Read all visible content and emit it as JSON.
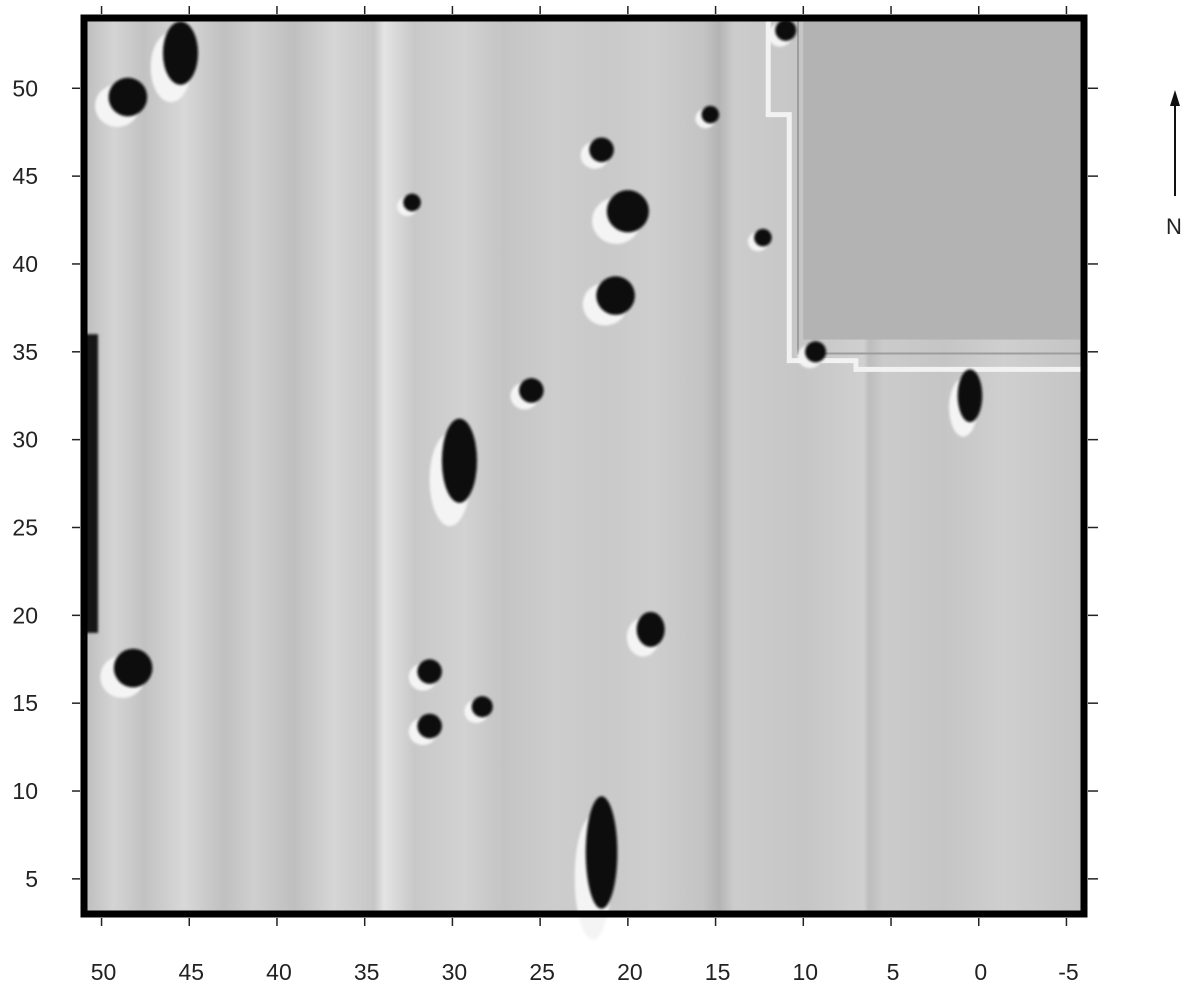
{
  "map": {
    "x_ticks": [
      "50",
      "45",
      "40",
      "35",
      "30",
      "25",
      "20",
      "15",
      "10",
      "5",
      "0",
      "-5"
    ],
    "y_ticks": [
      "50",
      "45",
      "40",
      "35",
      "30",
      "25",
      "20",
      "15",
      "10",
      "5"
    ],
    "x_range": [
      51,
      -6
    ],
    "y_range": [
      3,
      54
    ],
    "north_label": "N",
    "anomalies": [
      {
        "x": 48.5,
        "y": 49.5,
        "rx": 1.1,
        "ry": 1.1
      },
      {
        "x": 45.5,
        "y": 52.0,
        "rx": 1.0,
        "ry": 1.8
      },
      {
        "x": 20.0,
        "y": 43.0,
        "rx": 1.2,
        "ry": 1.2
      },
      {
        "x": 20.7,
        "y": 38.2,
        "rx": 1.1,
        "ry": 1.1
      },
      {
        "x": 21.5,
        "y": 46.5,
        "rx": 0.7,
        "ry": 0.7
      },
      {
        "x": 29.6,
        "y": 28.8,
        "rx": 1.0,
        "ry": 2.4
      },
      {
        "x": 25.5,
        "y": 32.8,
        "rx": 0.7,
        "ry": 0.7
      },
      {
        "x": 48.2,
        "y": 17.0,
        "rx": 1.1,
        "ry": 1.1
      },
      {
        "x": 18.7,
        "y": 19.2,
        "rx": 0.8,
        "ry": 1.0
      },
      {
        "x": 31.3,
        "y": 16.8,
        "rx": 0.7,
        "ry": 0.7
      },
      {
        "x": 28.3,
        "y": 14.8,
        "rx": 0.6,
        "ry": 0.6
      },
      {
        "x": 31.3,
        "y": 13.7,
        "rx": 0.7,
        "ry": 0.7
      },
      {
        "x": 21.5,
        "y": 6.5,
        "rx": 0.9,
        "ry": 3.2
      },
      {
        "x": 0.5,
        "y": 32.5,
        "rx": 0.7,
        "ry": 1.5
      },
      {
        "x": 9.3,
        "y": 35.0,
        "rx": 0.6,
        "ry": 0.6
      },
      {
        "x": 12.3,
        "y": 41.5,
        "rx": 0.5,
        "ry": 0.5
      },
      {
        "x": 32.3,
        "y": 43.5,
        "rx": 0.5,
        "ry": 0.5
      },
      {
        "x": 15.3,
        "y": 48.5,
        "rx": 0.5,
        "ry": 0.5
      },
      {
        "x": 11.0,
        "y": 53.3,
        "rx": 0.6,
        "ry": 0.6
      }
    ],
    "colors": {
      "background": "#c7c7c7",
      "masked": "#b3b3b3",
      "frame": "#000000",
      "anomaly": "#0d0d0d"
    }
  }
}
